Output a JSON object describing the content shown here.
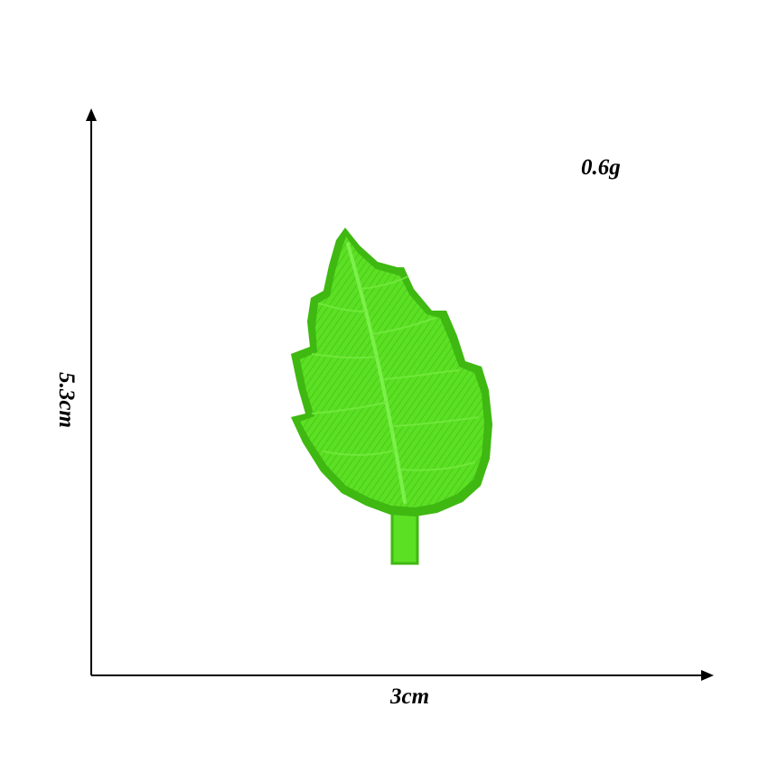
{
  "product": {
    "name_icon": "leaf-patch-icon",
    "colors": {
      "leaf_light": "#61e827",
      "leaf_mid": "#4fd11c",
      "leaf_border": "#3fb812",
      "vein": "#7cf04a"
    }
  },
  "dimensions": {
    "weight": "0.6g",
    "width": "3cm",
    "height": "5.3cm"
  }
}
